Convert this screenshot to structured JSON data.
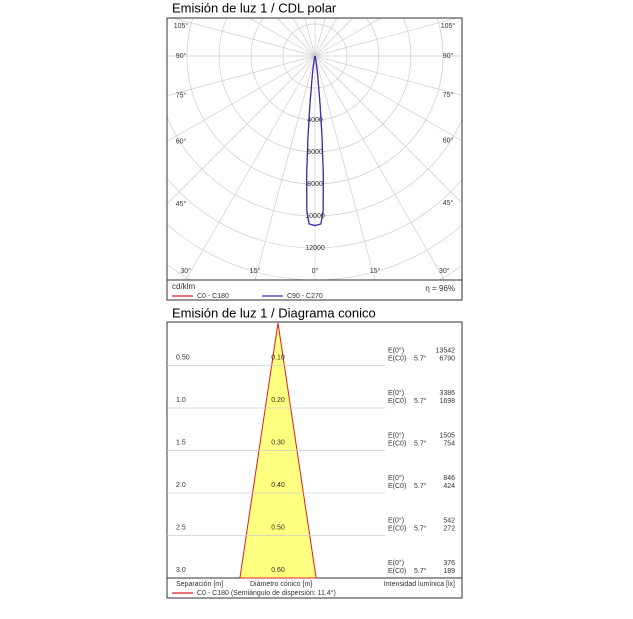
{
  "chart_data": [
    {
      "type": "polar",
      "title": "Emisión de luz 1 / CDL polar",
      "unit_label": "cd/klm",
      "efficiency": "η = 96%",
      "angle_ticks": [
        {
          "value": 0,
          "label": "0°"
        },
        {
          "value": 15,
          "label": "15°"
        },
        {
          "value": 30,
          "label": "30°"
        },
        {
          "value": 45,
          "label": "45°"
        },
        {
          "value": 60,
          "label": "60°"
        },
        {
          "value": 75,
          "label": "75°"
        },
        {
          "value": 90,
          "label": "90°"
        },
        {
          "value": 105,
          "label": "105°"
        }
      ],
      "rlim": [
        0,
        14000
      ],
      "rticks": [
        4000,
        6000,
        8000,
        10000,
        12000
      ],
      "grid": true,
      "series": [
        {
          "name": "C0 - C180",
          "color": "#e02020",
          "angles": [
            -90,
            -30,
            -20,
            -15,
            -10,
            -8,
            -6,
            -5,
            -4,
            -3,
            -2,
            0,
            2,
            3,
            4,
            5,
            6,
            8,
            10,
            15,
            20,
            30,
            90
          ],
          "values": [
            0,
            0,
            50,
            150,
            500,
            1200,
            3000,
            5000,
            7500,
            9700,
            10500,
            10600,
            10500,
            9700,
            7500,
            5000,
            3000,
            1200,
            500,
            150,
            50,
            0,
            0
          ]
        },
        {
          "name": "C90 - C270",
          "color": "#3a2cc0",
          "angles": [
            -90,
            -30,
            -20,
            -15,
            -10,
            -8,
            -6,
            -5,
            -4,
            -3,
            -2,
            0,
            2,
            3,
            4,
            5,
            6,
            8,
            10,
            15,
            20,
            30,
            90
          ],
          "values": [
            0,
            0,
            50,
            150,
            500,
            1200,
            3000,
            5000,
            7500,
            9700,
            10500,
            10600,
            10500,
            9700,
            7500,
            5000,
            3000,
            1200,
            500,
            150,
            50,
            0,
            0
          ]
        }
      ]
    },
    {
      "type": "cone",
      "title": "Emisión de luz 1 / Diagrama conico",
      "separation_label": "Separación [m]",
      "diameter_label": "Diámetro cónico [m]",
      "illuminance_label": "Intensidad lumínica [lx]",
      "legend": "C0 - C180 (Semiángulo de dispersión: 11.4°)",
      "color": "#e02020",
      "fill": "#ffff80",
      "e0_label": "E(0°)",
      "ec0_label": "E(C0)",
      "half_angle_label": "5.7°",
      "ylim": [
        0,
        3
      ],
      "separation": [
        0.5,
        1.0,
        1.5,
        2.0,
        2.5,
        3.0
      ],
      "separation_labels": [
        "0.50",
        "1.0",
        "1.5",
        "2.0",
        "2.5",
        "3.0"
      ],
      "diameter": [
        0.1,
        0.2,
        0.3,
        0.4,
        0.5,
        0.6
      ],
      "diameter_labels": [
        "0.10",
        "0.20",
        "0.30",
        "0.40",
        "0.50",
        "0.60"
      ],
      "e0": [
        13542,
        3386,
        1505,
        846,
        542,
        376
      ],
      "ec0": [
        6790,
        1698,
        754,
        424,
        272,
        189
      ]
    }
  ]
}
